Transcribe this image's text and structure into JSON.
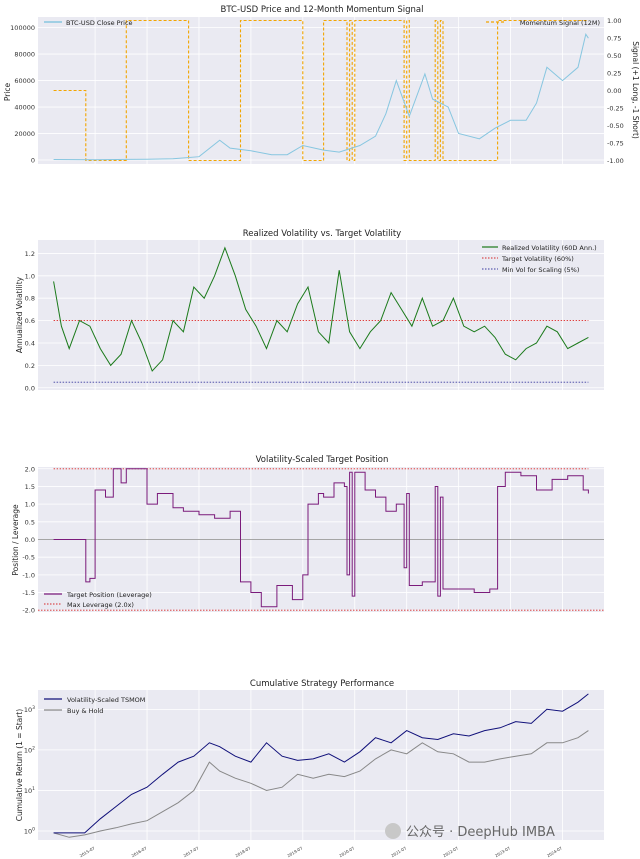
{
  "colors": {
    "price": "#87c6e0",
    "signal": "#f2a500",
    "vol": "#1b7a1b",
    "target": "#d62728",
    "minvol": "#3a3aa0",
    "position": "#7b1b7b",
    "strategy": "#10107a",
    "buyhold": "#888888",
    "panel_bg": "#eaeaf2",
    "grid": "#ffffff"
  },
  "watermark": "公众号 · DeepHub IMBA",
  "chart_data": [
    {
      "type": "line",
      "title": "BTC-USD Price and 12-Month Momentum Signal",
      "xlabel": "",
      "ylabel": "Price",
      "ylabel2": "Signal (+1 Long, -1 Short)",
      "yticks": [
        "0",
        "20000",
        "40000",
        "60000",
        "80000",
        "100000"
      ],
      "yticks2": [
        "-1.00",
        "-0.75",
        "-0.50",
        "-0.25",
        "0.00",
        "0.25",
        "0.50",
        "0.75",
        "1.00"
      ],
      "ylim": [
        -3000,
        108000
      ],
      "ylim2": [
        -1.05,
        1.05
      ],
      "grid": true,
      "series": [
        {
          "name": "BTC-USD Close Price",
          "axis": "left",
          "x": [
            2014.7,
            2015.5,
            2016.5,
            2017.0,
            2017.5,
            2017.9,
            2018.1,
            2018.5,
            2018.9,
            2019.2,
            2019.5,
            2019.9,
            2020.2,
            2020.6,
            2020.9,
            2021.1,
            2021.3,
            2021.55,
            2021.85,
            2022.0,
            2022.3,
            2022.5,
            2022.9,
            2023.2,
            2023.5,
            2023.8,
            2024.0,
            2024.2,
            2024.5,
            2024.8,
            2024.95,
            2025.0
          ],
          "y": [
            400,
            250,
            600,
            1000,
            2500,
            15000,
            9000,
            7000,
            4000,
            4000,
            11000,
            7500,
            6000,
            11000,
            18000,
            35000,
            60000,
            33000,
            65000,
            46000,
            40000,
            20000,
            16000,
            24000,
            30000,
            30000,
            43000,
            70000,
            60000,
            70000,
            95000,
            92000
          ]
        },
        {
          "name": "Momentum Signal (12M)",
          "axis": "right",
          "step": true,
          "x": [
            2014.7,
            2015.3,
            2015.32,
            2016.1,
            2017.3,
            2018.3,
            2019.5,
            2019.9,
            2020.35,
            2020.4,
            2020.45,
            2020.5,
            2021.45,
            2021.5,
            2021.55,
            2022.05,
            2022.1,
            2022.15,
            2022.2,
            2023.25,
            2025.0
          ],
          "y": [
            0,
            0,
            -1,
            1,
            -1,
            1,
            -1,
            1,
            -1,
            1,
            -1,
            1,
            -1,
            1,
            -1,
            1,
            -1,
            1,
            -1,
            1,
            1
          ]
        }
      ]
    },
    {
      "type": "line",
      "title": "Realized Volatility vs. Target Volatility",
      "xlabel": "",
      "ylabel": "Annualized Volatility",
      "yticks": [
        "0.0",
        "0.2",
        "0.4",
        "0.6",
        "0.8",
        "1.0",
        "1.2"
      ],
      "ylim": [
        -0.02,
        1.32
      ],
      "grid": true,
      "legend": "top-right",
      "series": [
        {
          "name": "Realized Volatility (60D Ann.)",
          "x": [
            2014.7,
            2014.85,
            2015.0,
            2015.2,
            2015.4,
            2015.6,
            2015.8,
            2016.0,
            2016.2,
            2016.4,
            2016.6,
            2016.8,
            2017.0,
            2017.2,
            2017.4,
            2017.6,
            2017.8,
            2018.0,
            2018.2,
            2018.4,
            2018.6,
            2018.8,
            2019.0,
            2019.2,
            2019.4,
            2019.6,
            2019.8,
            2020.0,
            2020.2,
            2020.4,
            2020.6,
            2020.8,
            2021.0,
            2021.2,
            2021.4,
            2021.6,
            2021.8,
            2022.0,
            2022.2,
            2022.4,
            2022.6,
            2022.8,
            2023.0,
            2023.2,
            2023.4,
            2023.6,
            2023.8,
            2024.0,
            2024.2,
            2024.4,
            2024.6,
            2024.8,
            2025.0
          ],
          "y": [
            0.95,
            0.55,
            0.35,
            0.6,
            0.55,
            0.35,
            0.2,
            0.3,
            0.6,
            0.4,
            0.15,
            0.25,
            0.6,
            0.5,
            0.9,
            0.8,
            1.0,
            1.25,
            1.0,
            0.7,
            0.55,
            0.35,
            0.6,
            0.5,
            0.75,
            0.9,
            0.5,
            0.4,
            1.05,
            0.5,
            0.35,
            0.5,
            0.6,
            0.85,
            0.7,
            0.55,
            0.8,
            0.55,
            0.6,
            0.8,
            0.55,
            0.5,
            0.55,
            0.45,
            0.3,
            0.25,
            0.35,
            0.4,
            0.55,
            0.5,
            0.35,
            0.4,
            0.45
          ]
        },
        {
          "name": "Target Volatility (60%)",
          "x": [
            2014.7,
            2025.0
          ],
          "y": [
            0.6,
            0.6
          ]
        },
        {
          "name": "Min Vol for Scaling (5%)",
          "x": [
            2014.7,
            2025.0
          ],
          "y": [
            0.05,
            0.05
          ]
        }
      ]
    },
    {
      "type": "line",
      "title": "Volatility-Scaled Target Position",
      "xlabel": "",
      "ylabel": "Position / Leverage",
      "yticks": [
        "-2.0",
        "-1.5",
        "-1.0",
        "-0.5",
        "0.0",
        "0.5",
        "1.0",
        "1.5",
        "2.0"
      ],
      "ylim": [
        -2.05,
        2.05
      ],
      "grid": true,
      "legend": "bottom-left",
      "series": [
        {
          "name": "Target Position (Leverage)",
          "step": true,
          "x": [
            2014.7,
            2015.3,
            2015.32,
            2015.4,
            2015.5,
            2015.7,
            2015.85,
            2016.0,
            2016.1,
            2016.3,
            2016.5,
            2016.7,
            2017.0,
            2017.2,
            2017.5,
            2017.8,
            2018.1,
            2018.3,
            2018.5,
            2018.7,
            2019.0,
            2019.3,
            2019.5,
            2019.6,
            2019.8,
            2019.9,
            2020.1,
            2020.3,
            2020.35,
            2020.4,
            2020.45,
            2020.5,
            2020.7,
            2020.9,
            2021.1,
            2021.3,
            2021.45,
            2021.5,
            2021.55,
            2021.8,
            2022.05,
            2022.1,
            2022.15,
            2022.2,
            2022.5,
            2022.8,
            2023.1,
            2023.25,
            2023.4,
            2023.7,
            2024.0,
            2024.3,
            2024.6,
            2024.9,
            2025.0
          ],
          "y": [
            0,
            0,
            -1.2,
            -1.1,
            1.4,
            1.2,
            2.0,
            1.6,
            2.0,
            2.0,
            1.0,
            1.3,
            0.9,
            0.8,
            0.7,
            0.6,
            0.8,
            -1.2,
            -1.5,
            -1.9,
            -1.3,
            -1.7,
            -1.0,
            1.0,
            1.3,
            1.2,
            1.6,
            1.5,
            -1.0,
            1.9,
            -1.6,
            1.9,
            1.4,
            1.2,
            0.8,
            1.0,
            -0.8,
            1.3,
            -1.3,
            -1.2,
            1.5,
            -1.6,
            1.2,
            -1.4,
            -1.4,
            -1.5,
            -1.4,
            1.5,
            1.9,
            1.8,
            1.4,
            1.7,
            1.8,
            1.4,
            1.3
          ]
        },
        {
          "name": "Max Leverage (2.0x)",
          "x": [
            2014.7,
            2025.0
          ],
          "y": [
            2.0,
            2.0
          ]
        }
      ],
      "extra_lines": [
        {
          "y": -2.0
        }
      ]
    },
    {
      "type": "line",
      "title": "Cumulative Strategy Performance",
      "xlabel": "",
      "ylabel": "Cumulative Return (1 = Start)",
      "yscale": "log",
      "yticks": [
        "10^0",
        "10^1",
        "10^2",
        "10^3"
      ],
      "ylim": [
        0.6,
        3000
      ],
      "grid": true,
      "legend": "top-left",
      "xticks": [
        "2015-07",
        "2016-07",
        "2017-07",
        "2018-07",
        "2019-07",
        "2020-07",
        "2021-07",
        "2022-07",
        "2023-07",
        "2024-07"
      ],
      "series": [
        {
          "name": "Volatility-Scaled TSMOM",
          "x": [
            2014.7,
            2015.0,
            2015.3,
            2015.6,
            2015.9,
            2016.2,
            2016.5,
            2016.8,
            2017.1,
            2017.4,
            2017.7,
            2017.9,
            2018.2,
            2018.5,
            2018.8,
            2019.1,
            2019.4,
            2019.7,
            2020.0,
            2020.3,
            2020.6,
            2020.9,
            2021.2,
            2021.5,
            2021.8,
            2022.1,
            2022.4,
            2022.7,
            2023.0,
            2023.3,
            2023.6,
            2023.9,
            2024.2,
            2024.5,
            2024.8,
            2025.0
          ],
          "y": [
            0.9,
            0.9,
            0.9,
            2,
            4,
            8,
            12,
            25,
            50,
            70,
            150,
            120,
            70,
            50,
            150,
            70,
            55,
            60,
            80,
            50,
            90,
            200,
            150,
            300,
            200,
            180,
            250,
            220,
            300,
            350,
            500,
            450,
            1000,
            900,
            1500,
            2400
          ]
        },
        {
          "name": "Buy & Hold",
          "x": [
            2014.7,
            2015.0,
            2015.3,
            2015.6,
            2015.9,
            2016.2,
            2016.5,
            2016.8,
            2017.1,
            2017.4,
            2017.7,
            2017.9,
            2018.2,
            2018.5,
            2018.8,
            2019.1,
            2019.4,
            2019.7,
            2020.0,
            2020.3,
            2020.6,
            2020.9,
            2021.2,
            2021.5,
            2021.8,
            2022.1,
            2022.4,
            2022.7,
            2023.0,
            2023.3,
            2023.6,
            2023.9,
            2024.2,
            2024.5,
            2024.8,
            2025.0
          ],
          "y": [
            0.9,
            0.7,
            0.8,
            1.0,
            1.2,
            1.5,
            1.8,
            3,
            5,
            10,
            50,
            30,
            20,
            15,
            10,
            12,
            25,
            20,
            25,
            22,
            30,
            60,
            100,
            80,
            150,
            90,
            80,
            50,
            50,
            60,
            70,
            80,
            150,
            150,
            200,
            300
          ]
        }
      ]
    }
  ]
}
